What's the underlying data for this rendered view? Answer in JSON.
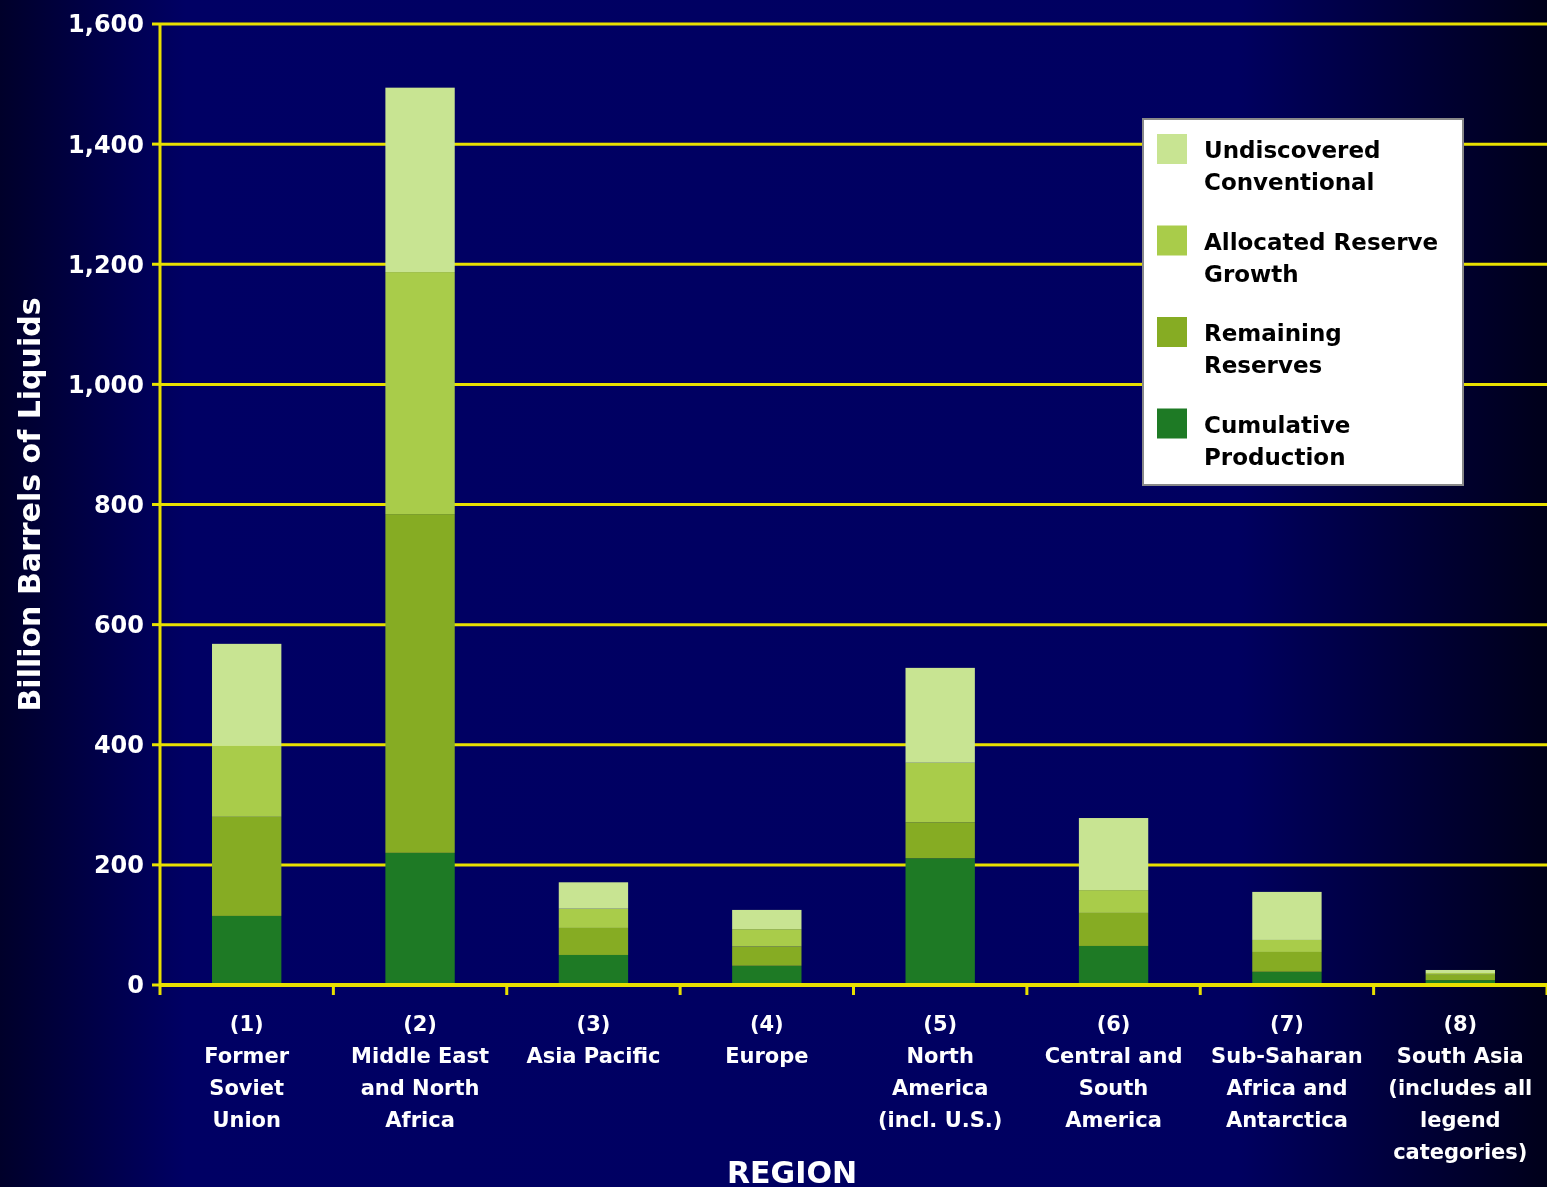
{
  "chart_data": {
    "type": "bar",
    "stacked": true,
    "xlabel": "REGION",
    "ylabel": "Billion Barrels of Liquids",
    "categories": [
      "(1) Former Soviet Union",
      "(2) Middle East and North Africa",
      "(3) Asia Pacific",
      "(4) Europe",
      "(5) North America (incl. U.S.)",
      "(6) Central and South America",
      "(7) Sub-Saharan Africa and Antarctica",
      "(8) South Asia (includes all legend categories)"
    ],
    "series": [
      {
        "name": "Cumulative Production",
        "color": "#1e7a25",
        "values": [
          115,
          220,
          50,
          32,
          211,
          65,
          22,
          8
        ]
      },
      {
        "name": "Remaining Reserves",
        "color": "#86ac23",
        "values": [
          165,
          564,
          45,
          32,
          60,
          55,
          33,
          9
        ]
      },
      {
        "name": "Allocated Reserve Growth",
        "color": "#a9cc4a",
        "values": [
          118,
          403,
          32,
          29,
          99,
          38,
          20,
          3
        ]
      },
      {
        "name": "Undiscovered Conventional",
        "color": "#c8e492",
        "values": [
          170,
          307,
          44,
          32,
          158,
          120,
          80,
          5
        ]
      }
    ],
    "ylim": [
      0,
      1600
    ],
    "yticks": [
      0,
      200,
      400,
      600,
      800,
      {
        "value": 1000,
        "label": "1,000"
      },
      {
        "value": 1200,
        "label": "1,200"
      },
      {
        "value": 1400,
        "label": "1,400"
      },
      {
        "value": 1600,
        "label": "1,600"
      }
    ],
    "grid": "y",
    "legend": "top right"
  }
}
